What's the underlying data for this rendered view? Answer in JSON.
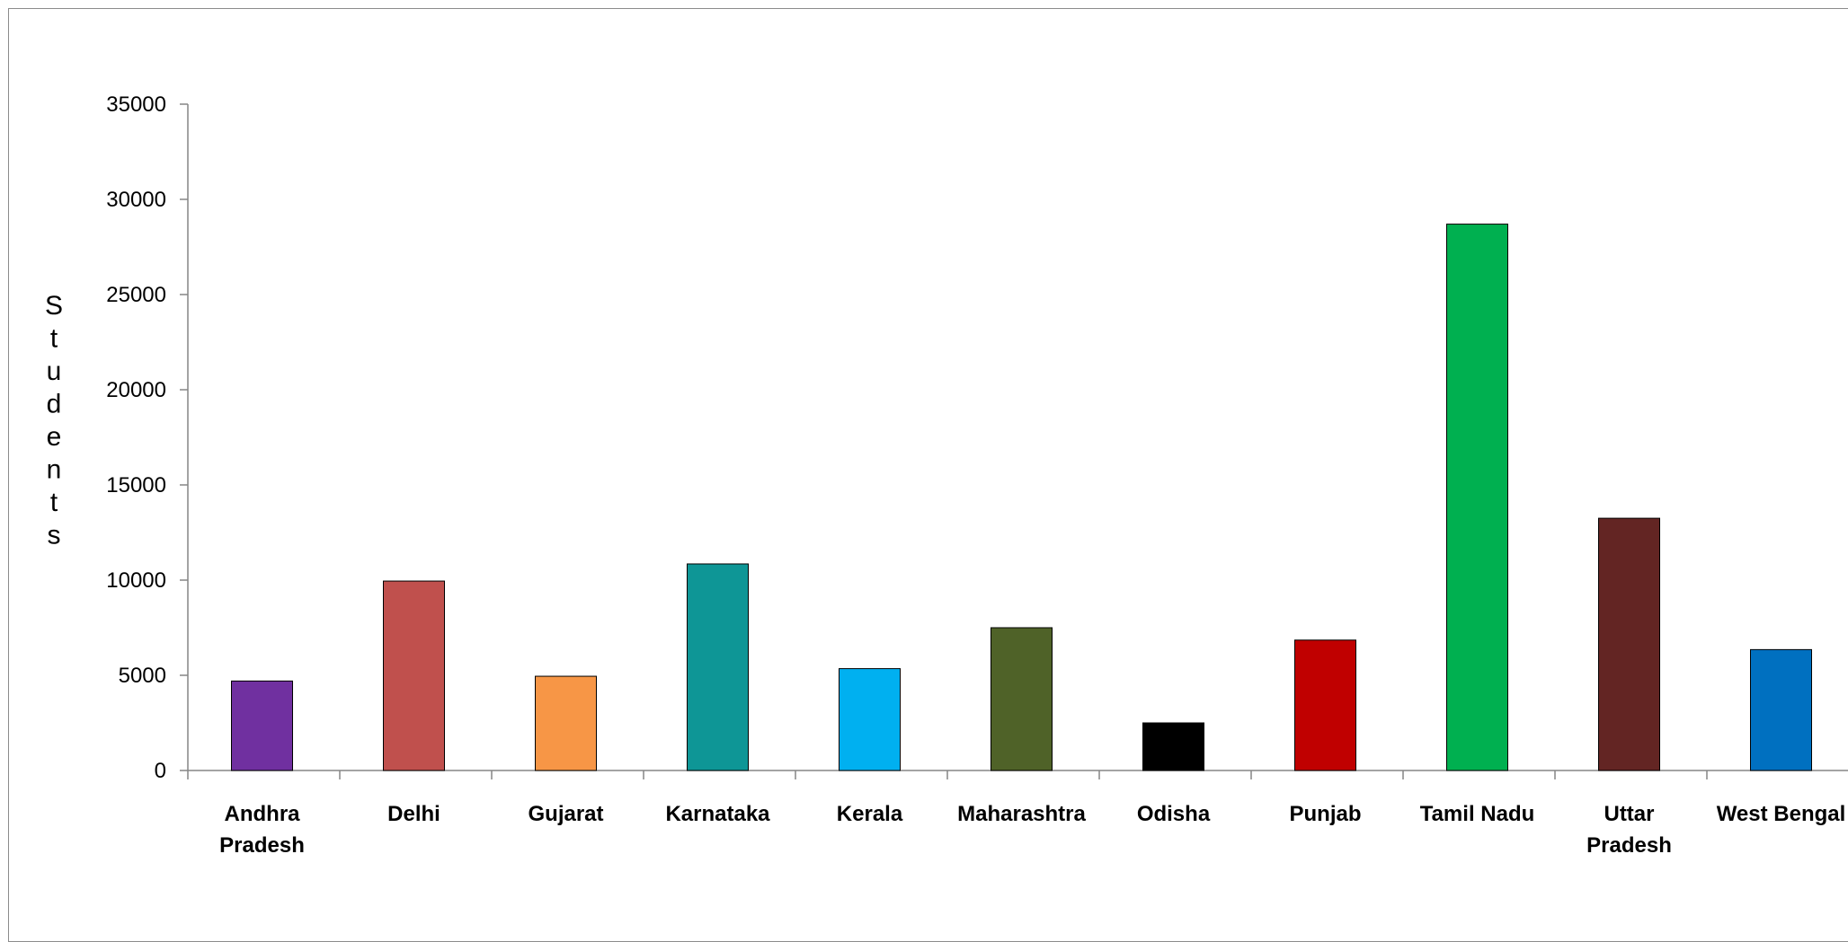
{
  "chart_data": {
    "type": "bar",
    "title": "",
    "xlabel": "",
    "ylabel": "Students",
    "ylim": [
      0,
      35000
    ],
    "yticks": [
      0,
      5000,
      10000,
      15000,
      20000,
      25000,
      30000,
      35000
    ],
    "grid": false,
    "legend": "none",
    "categories": [
      "Andhra Pradesh",
      "Delhi",
      "Gujarat",
      "Karnataka",
      "Kerala",
      "Maharashtra",
      "Odisha",
      "Punjab",
      "Tamil Nadu",
      "Uttar Pradesh",
      "West Bengal"
    ],
    "values": [
      4700,
      9950,
      4950,
      10850,
      5350,
      7500,
      2500,
      6850,
      28700,
      13250,
      6350
    ],
    "colors": [
      "#7030A0",
      "#C0504D",
      "#F79646",
      "#0E9696",
      "#00B0F0",
      "#4F6228",
      "#000000",
      "#C00000",
      "#00B050",
      "#632523",
      "#0070C0"
    ]
  }
}
